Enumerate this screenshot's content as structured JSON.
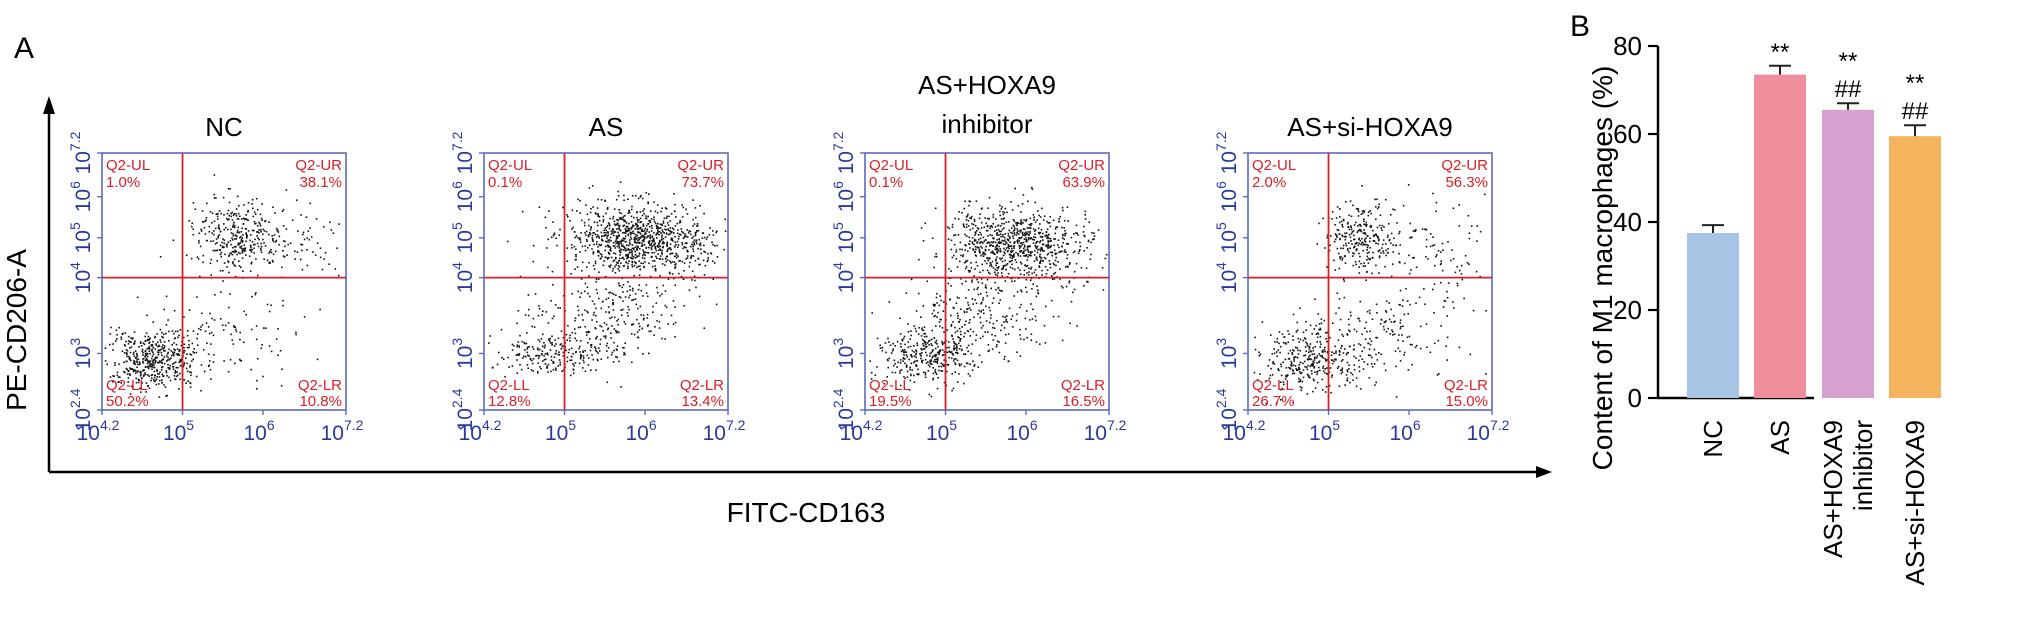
{
  "figure": {
    "panel_a_letter": "A",
    "panel_b_letter": "B",
    "shared_y_label": "PE-CD206-A",
    "shared_x_label": "FITC-CD163"
  },
  "chart_data": [
    {
      "type": "scatter",
      "title": "NC",
      "x_axis_ticks": [
        {
          "base": "10",
          "exp": "4.2"
        },
        {
          "base": "10",
          "exp": "5"
        },
        {
          "base": "10",
          "exp": "6"
        },
        {
          "base": "10",
          "exp": "7.2"
        }
      ],
      "y_axis_ticks": [
        {
          "base": "10",
          "exp": "2.4"
        },
        {
          "base": "10",
          "exp": "3"
        },
        {
          "base": "10",
          "exp": "4"
        },
        {
          "base": "10",
          "exp": "5"
        },
        {
          "base": "10",
          "exp": "6"
        },
        {
          "base": "10",
          "exp": "7.2"
        }
      ],
      "quadrants": {
        "UL": {
          "name": "Q2-UL",
          "percent": "1.0%"
        },
        "UR": {
          "name": "Q2-UR",
          "percent": "38.1%"
        },
        "LL": {
          "name": "Q2-LL",
          "percent": "50.2%"
        },
        "LR": {
          "name": "Q2-LR",
          "percent": "10.8%"
        }
      }
    },
    {
      "type": "scatter",
      "title": "AS",
      "x_axis_ticks": [
        {
          "base": "10",
          "exp": "4.2"
        },
        {
          "base": "10",
          "exp": "5"
        },
        {
          "base": "10",
          "exp": "6"
        },
        {
          "base": "10",
          "exp": "7.2"
        }
      ],
      "y_axis_ticks": [
        {
          "base": "10",
          "exp": "2.4"
        },
        {
          "base": "10",
          "exp": "3"
        },
        {
          "base": "10",
          "exp": "4"
        },
        {
          "base": "10",
          "exp": "5"
        },
        {
          "base": "10",
          "exp": "6"
        },
        {
          "base": "10",
          "exp": "7.2"
        }
      ],
      "quadrants": {
        "UL": {
          "name": "Q2-UL",
          "percent": "0.1%"
        },
        "UR": {
          "name": "Q2-UR",
          "percent": "73.7%"
        },
        "LL": {
          "name": "Q2-LL",
          "percent": "12.8%"
        },
        "LR": {
          "name": "Q2-LR",
          "percent": "13.4%"
        }
      }
    },
    {
      "type": "scatter",
      "title": "AS+HOXA9\ninhibitor",
      "x_axis_ticks": [
        {
          "base": "10",
          "exp": "4.2"
        },
        {
          "base": "10",
          "exp": "5"
        },
        {
          "base": "10",
          "exp": "6"
        },
        {
          "base": "10",
          "exp": "7.2"
        }
      ],
      "y_axis_ticks": [
        {
          "base": "10",
          "exp": "2.4"
        },
        {
          "base": "10",
          "exp": "3"
        },
        {
          "base": "10",
          "exp": "4"
        },
        {
          "base": "10",
          "exp": "5"
        },
        {
          "base": "10",
          "exp": "6"
        },
        {
          "base": "10",
          "exp": "7.2"
        }
      ],
      "quadrants": {
        "UL": {
          "name": "Q2-UL",
          "percent": "0.1%"
        },
        "UR": {
          "name": "Q2-UR",
          "percent": "63.9%"
        },
        "LL": {
          "name": "Q2-LL",
          "percent": "19.5%"
        },
        "LR": {
          "name": "Q2-LR",
          "percent": "16.5%"
        }
      }
    },
    {
      "type": "scatter",
      "title": "AS+si-HOXA9",
      "x_axis_ticks": [
        {
          "base": "10",
          "exp": "4.2"
        },
        {
          "base": "10",
          "exp": "5"
        },
        {
          "base": "10",
          "exp": "6"
        },
        {
          "base": "10",
          "exp": "7.2"
        }
      ],
      "y_axis_ticks": [
        {
          "base": "10",
          "exp": "2.4"
        },
        {
          "base": "10",
          "exp": "3"
        },
        {
          "base": "10",
          "exp": "4"
        },
        {
          "base": "10",
          "exp": "5"
        },
        {
          "base": "10",
          "exp": "6"
        },
        {
          "base": "10",
          "exp": "7.2"
        }
      ],
      "quadrants": {
        "UL": {
          "name": "Q2-UL",
          "percent": "2.0%"
        },
        "UR": {
          "name": "Q2-UR",
          "percent": "56.3%"
        },
        "LL": {
          "name": "Q2-LL",
          "percent": "26.7%"
        },
        "LR": {
          "name": "Q2-LR",
          "percent": "15.0%"
        }
      }
    },
    {
      "type": "bar",
      "ylabel": "Content of M1 macrophages (%)",
      "ylim": [
        0,
        80
      ],
      "yticks": [
        "0",
        "20",
        "40",
        "60",
        "80"
      ],
      "categories": [
        "NC",
        "AS",
        "AS+HOXA9\ninhibitor",
        "AS+si-HOXA9"
      ],
      "values": [
        37.5,
        73.5,
        65.5,
        59.5
      ],
      "errors": [
        1.8,
        2.0,
        1.5,
        2.5
      ],
      "colors": [
        "#a7c4e4",
        "#ef8f9b",
        "#d6a1cf",
        "#f6b35d"
      ],
      "significance": [
        {
          "line1": "",
          "line2": ""
        },
        {
          "line1": "**",
          "line2": ""
        },
        {
          "line1": "**",
          "line2": "##"
        },
        {
          "line1": "**",
          "line2": "##"
        }
      ]
    }
  ]
}
